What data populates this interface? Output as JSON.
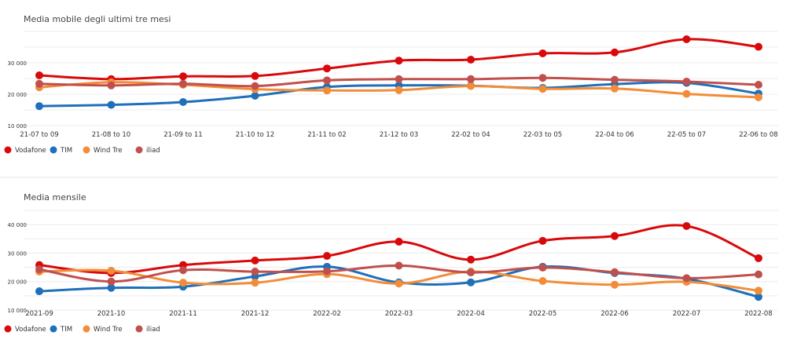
{
  "colors": {
    "Vodafone": "#d9090b",
    "TIM": "#1f6fba",
    "Wind Tre": "#f28c38",
    "iliad": "#c0504d"
  },
  "chart_data": [
    {
      "type": "line",
      "title": "Media mobile degli ultimi tre mesi",
      "categories": [
        "21-07 to 09",
        "21-08 to 10",
        "21-09 to 11",
        "21-10 to 12",
        "21-11 to 02",
        "21-12 to 03",
        "22-02 to 04",
        "22-03 to 05",
        "22-04 to 06",
        "22-05 to 07",
        "22-06 to 08"
      ],
      "yticks": [
        "10 000",
        "20 000",
        "30 000"
      ],
      "ylim": [
        10000,
        40000
      ],
      "grid": true,
      "legend": "bottom-left",
      "series": [
        {
          "name": "Vodafone",
          "values": [
            26000,
            24800,
            25700,
            25800,
            28200,
            30700,
            31000,
            33000,
            33300,
            37500,
            35100
          ]
        },
        {
          "name": "TIM",
          "values": [
            16200,
            16600,
            17500,
            19500,
            22300,
            22800,
            22700,
            22000,
            23200,
            23600,
            20200
          ]
        },
        {
          "name": "Wind Tre",
          "values": [
            22200,
            23800,
            23000,
            21600,
            21200,
            21300,
            22600,
            21700,
            21800,
            20100,
            19000
          ]
        },
        {
          "name": "iliad",
          "values": [
            23300,
            22800,
            23300,
            22600,
            24400,
            24800,
            24800,
            25200,
            24600,
            24000,
            23000
          ]
        }
      ]
    },
    {
      "type": "line",
      "title": "Media mensile",
      "categories": [
        "2021-09",
        "2021-10",
        "2021-11",
        "2021-12",
        "2022-02",
        "2022-03",
        "2022-04",
        "2022-05",
        "2022-06",
        "2022-07",
        "2022-08"
      ],
      "yticks": [
        "10 000",
        "20 000",
        "30 000",
        "40 000"
      ],
      "ylim": [
        10000,
        45000
      ],
      "grid": true,
      "legend": "bottom-left",
      "series": [
        {
          "name": "Vodafone",
          "values": [
            25800,
            23000,
            25800,
            27400,
            29000,
            34000,
            27700,
            34300,
            36000,
            39500,
            28200
          ]
        },
        {
          "name": "TIM",
          "values": [
            16600,
            17800,
            18200,
            21800,
            25200,
            19700,
            19700,
            25200,
            23000,
            21000,
            14600
          ]
        },
        {
          "name": "Wind Tre",
          "values": [
            23500,
            23800,
            19600,
            19600,
            22600,
            19300,
            23500,
            20200,
            18900,
            19900,
            16800
          ]
        },
        {
          "name": "iliad",
          "values": [
            24300,
            20000,
            24000,
            23500,
            23600,
            25600,
            23200,
            24900,
            23300,
            21200,
            22500
          ]
        }
      ]
    }
  ]
}
